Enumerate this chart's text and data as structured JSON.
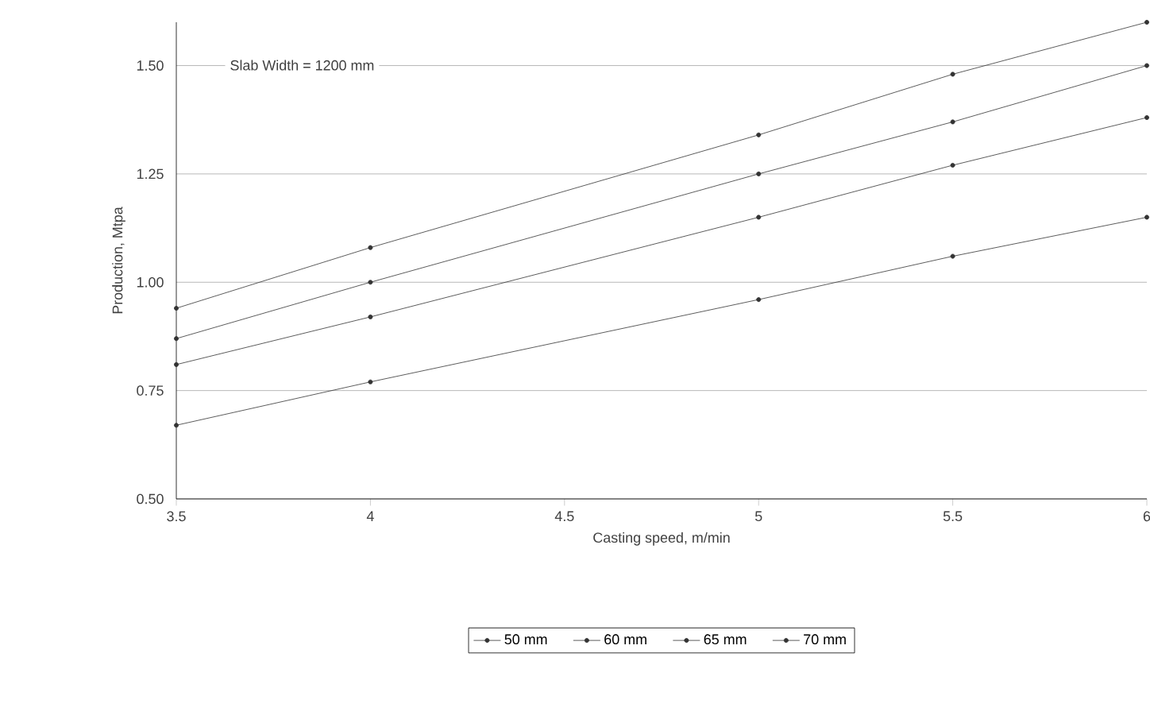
{
  "chart_data": {
    "type": "line",
    "xlabel": "Casting speed, m/min",
    "ylabel": "Production, Mtpa",
    "annotations": [
      "Slab  Width = 1200 mm"
    ],
    "x": [
      3.5,
      4,
      5,
      5.5,
      6
    ],
    "series": [
      {
        "name": "50 mm",
        "color": "#333333",
        "values": [
          0.67,
          0.77,
          0.96,
          1.06,
          1.15
        ]
      },
      {
        "name": "60 mm",
        "color": "#333333",
        "values": [
          0.81,
          0.92,
          1.15,
          1.27,
          1.38
        ]
      },
      {
        "name": "65 mm",
        "color": "#333333",
        "values": [
          0.87,
          1.0,
          1.25,
          1.37,
          1.5
        ]
      },
      {
        "name": "70 mm",
        "color": "#333333",
        "values": [
          0.94,
          1.08,
          1.34,
          1.48,
          1.6
        ]
      }
    ],
    "xlim": [
      3.5,
      6
    ],
    "xticks": [
      3.5,
      4,
      4.5,
      5,
      5.5,
      6
    ],
    "ylim": [
      0.5,
      1.6
    ],
    "yticks": [
      {
        "value": 0.5,
        "label": "0.50"
      },
      {
        "value": 0.75,
        "label": "0.75"
      },
      {
        "value": 1.0,
        "label": "1.00"
      },
      {
        "value": 1.25,
        "label": "1.25"
      },
      {
        "value": 1.5,
        "label": "1.50"
      }
    ],
    "grid": "y",
    "legend": "bottom",
    "marker": "circle",
    "line_style": "solid"
  }
}
